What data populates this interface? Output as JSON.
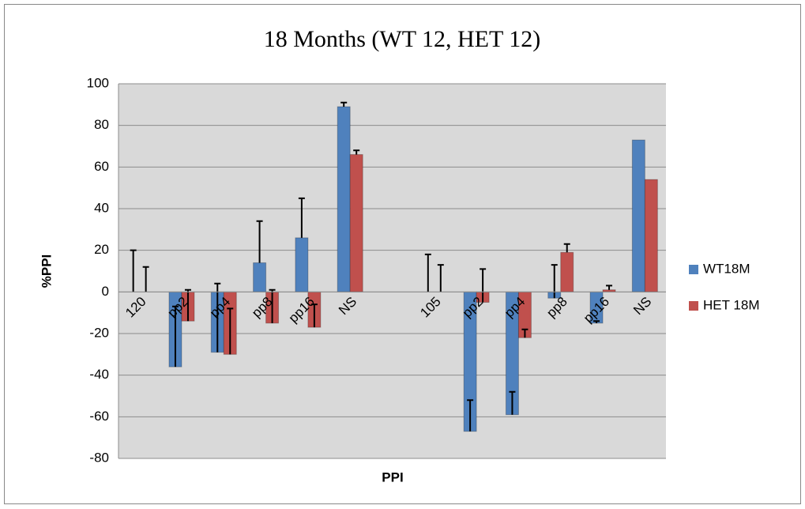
{
  "chart_data": {
    "type": "bar",
    "title": "18 Months (WT 12, HET 12)",
    "x_label": "PPI",
    "y_label": "%PPI",
    "categories": [
      "120",
      "pp2",
      "pp4",
      "pp8",
      "pp16",
      "NS",
      null,
      "105",
      "pp2",
      "pp4",
      "pp8",
      "pp16",
      "NS"
    ],
    "series": [
      {
        "name": "WT18M",
        "color": "#4f81bd",
        "values": [
          0,
          -36,
          -29,
          14,
          26,
          89,
          null,
          0,
          -67,
          -59,
          -3,
          -15,
          73
        ],
        "errors": [
          20,
          29,
          33,
          20,
          19,
          2,
          null,
          18,
          15,
          11,
          16,
          1,
          null
        ]
      },
      {
        "name": "HET 18M",
        "color": "#c0504d",
        "values": [
          0,
          -14,
          -30,
          -15,
          -17,
          66,
          null,
          0,
          -5,
          -22,
          19,
          1,
          54
        ],
        "errors": [
          12,
          15,
          22,
          16,
          11,
          2,
          null,
          13,
          16,
          4,
          4,
          2,
          null
        ]
      }
    ],
    "ylim": [
      -80,
      100
    ],
    "yticks": [
      -80,
      -60,
      -40,
      -20,
      0,
      20,
      40,
      60,
      80,
      100
    ],
    "grid": true,
    "legend": "right"
  }
}
